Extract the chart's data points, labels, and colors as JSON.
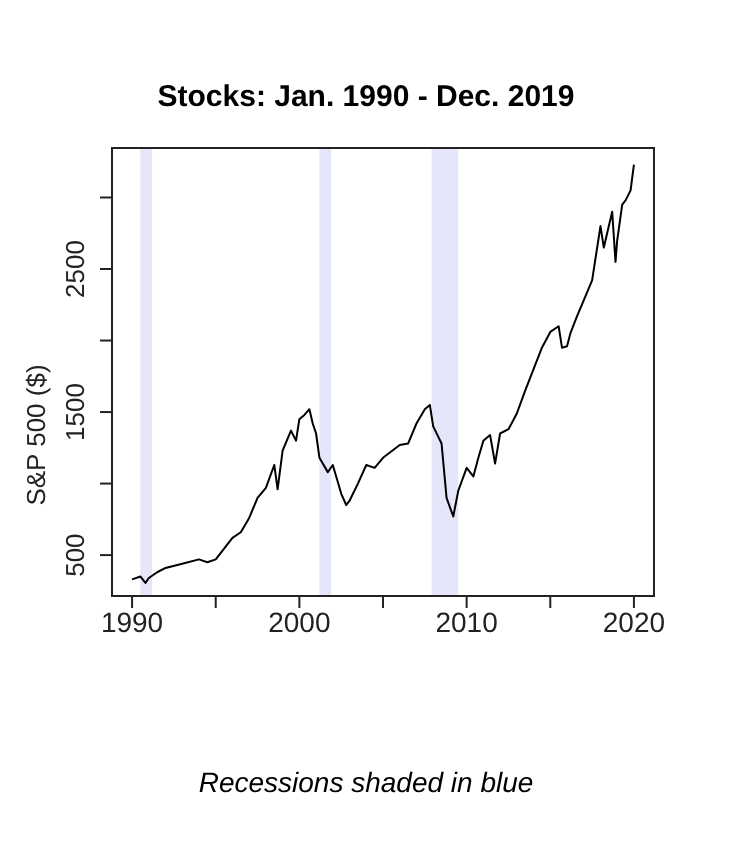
{
  "chart_data": {
    "type": "line",
    "title": "Stocks: Jan. 1990 - Dec. 2019",
    "ylabel": "S&P 500 ($)",
    "annotations": [
      "Recessions shaded in blue"
    ],
    "x": [
      1990,
      1990.5,
      1990.8,
      1991,
      1991.5,
      1992,
      1993,
      1994,
      1994.5,
      1995,
      1996,
      1996.5,
      1997,
      1997.5,
      1998,
      1998.5,
      1998.7,
      1999,
      1999.5,
      1999.8,
      2000,
      2000.3,
      2000.6,
      2000.8,
      2001,
      2001.2,
      2001.7,
      2002,
      2002.5,
      2002.8,
      2003,
      2003.5,
      2004,
      2004.5,
      2005,
      2006,
      2006.5,
      2007,
      2007.5,
      2007.8,
      2008,
      2008.5,
      2008.8,
      2009.2,
      2009.5,
      2010,
      2010.4,
      2010.7,
      2011,
      2011.4,
      2011.7,
      2012,
      2012.5,
      2013,
      2013.5,
      2014,
      2014.5,
      2015,
      2015.5,
      2015.7,
      2016,
      2016.2,
      2016.6,
      2017,
      2017.5,
      2018,
      2018.2,
      2018.7,
      2018.9,
      2019,
      2019.3,
      2019.5,
      2019.8,
      2020
    ],
    "series": [
      {
        "color": "#000000",
        "values": [
          330,
          350,
          305,
          340,
          380,
          410,
          440,
          470,
          450,
          470,
          620,
          660,
          760,
          900,
          970,
          1130,
          960,
          1230,
          1370,
          1300,
          1450,
          1480,
          1520,
          1420,
          1350,
          1180,
          1080,
          1130,
          930,
          850,
          880,
          1000,
          1130,
          1110,
          1180,
          1270,
          1280,
          1420,
          1520,
          1550,
          1400,
          1280,
          900,
          770,
          950,
          1110,
          1050,
          1180,
          1300,
          1340,
          1140,
          1350,
          1380,
          1490,
          1650,
          1800,
          1950,
          2060,
          2100,
          1950,
          1960,
          2050,
          2170,
          2280,
          2420,
          2800,
          2650,
          2900,
          2550,
          2700,
          2950,
          2980,
          3050,
          3230
        ]
      }
    ],
    "xlim": [
      1988.8,
      2021.2
    ],
    "xticks": [
      1990,
      {
        "value": 1995,
        "label": null
      },
      2000,
      {
        "value": 2005,
        "label": null
      },
      2010,
      {
        "value": 2015,
        "label": null
      },
      2020
    ],
    "ylim": [
      214,
      3346
    ],
    "yticks": [
      500,
      {
        "value": 1000,
        "label": null
      },
      1500,
      {
        "value": 2000,
        "label": null
      },
      2500,
      {
        "value": 3000,
        "label": null
      }
    ],
    "bands": [
      {
        "axis": "x",
        "from": 1990.5,
        "to": 1991.2,
        "color": "#e6e6fa"
      },
      {
        "axis": "x",
        "from": 2001.2,
        "to": 2001.9,
        "color": "#e6e6fa"
      },
      {
        "axis": "x",
        "from": 2007.9,
        "to": 2009.5,
        "color": "#e6e6fa"
      }
    ],
    "grid": false,
    "legend": false,
    "marker": "none",
    "line_style": "solid"
  }
}
